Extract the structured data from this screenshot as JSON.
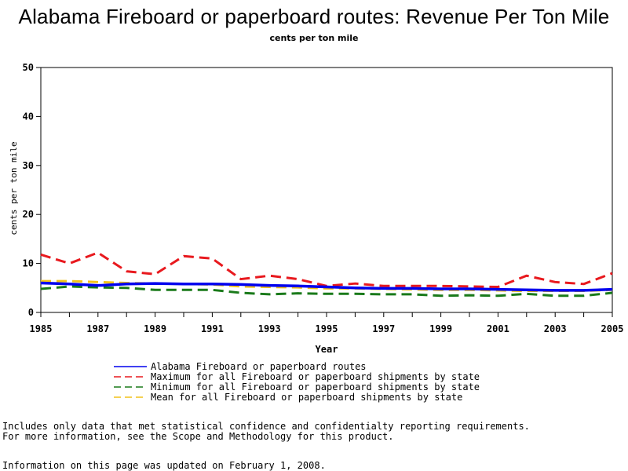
{
  "title": "Alabama Fireboard or paperboard routes: Revenue Per Ton Mile",
  "subtitle": "cents per ton mile",
  "footnotes": {
    "line1": "Includes only data that met statistical confidence and confidentialty reporting requirements.",
    "line2": "For more information, see the Scope and Methodology for this product.",
    "updated": "Information on this page was updated on February 1, 2008."
  },
  "chart_data": {
    "type": "line",
    "xlabel": "Year",
    "ylabel": "cents per ton mile",
    "xlim": [
      1985,
      2005
    ],
    "ylim": [
      0,
      50
    ],
    "xticks": [
      1985,
      1987,
      1989,
      1991,
      1993,
      1995,
      1997,
      1999,
      2001,
      2003,
      2005
    ],
    "yticks": [
      0,
      10,
      20,
      30,
      40,
      50
    ],
    "grid": false,
    "legend_position": "bottom",
    "x": [
      1985,
      1986,
      1987,
      1988,
      1989,
      1990,
      1991,
      1992,
      1993,
      1994,
      1995,
      1996,
      1997,
      1998,
      1999,
      2000,
      2001,
      2002,
      2003,
      2004,
      2005
    ],
    "series": [
      {
        "name": "Maximum for all Fireboard or paperboard shipments by state",
        "color": "#e8191e",
        "dash": true,
        "values": [
          11.8,
          10.0,
          12.2,
          8.4,
          7.8,
          11.5,
          11.0,
          6.8,
          7.5,
          6.8,
          5.4,
          5.9,
          5.4,
          5.4,
          5.4,
          5.3,
          5.2,
          7.5,
          6.2,
          5.8,
          8.0
        ]
      },
      {
        "name": "Minimum for all Fireboard or paperboard shipments by state",
        "color": "#1a7a1a",
        "dash": true,
        "values": [
          4.8,
          5.3,
          5.1,
          5.0,
          4.6,
          4.6,
          4.6,
          4.0,
          3.7,
          3.9,
          3.8,
          3.8,
          3.7,
          3.7,
          3.4,
          3.5,
          3.4,
          3.8,
          3.4,
          3.4,
          4.0
        ]
      },
      {
        "name": "Mean for all Fireboard or paperboard shipments by state",
        "color": "#f2c21a",
        "dash": true,
        "values": [
          6.4,
          6.4,
          6.2,
          6.0,
          5.9,
          5.8,
          5.7,
          5.3,
          5.2,
          5.1,
          4.9,
          4.9,
          4.8,
          4.7,
          4.6,
          4.6,
          4.5,
          4.4,
          4.4,
          4.4,
          4.6
        ]
      },
      {
        "name": "Alabama Fireboard or paperboard routes",
        "color": "#0000ee",
        "dash": false,
        "values": [
          6.0,
          5.8,
          5.5,
          5.8,
          5.9,
          5.8,
          5.8,
          5.7,
          5.5,
          5.4,
          5.2,
          5.0,
          4.9,
          4.9,
          4.8,
          4.8,
          4.7,
          4.6,
          4.5,
          4.5,
          4.7
        ]
      }
    ],
    "legend": [
      {
        "label": "Alabama Fireboard or paperboard routes",
        "color": "#0000ee",
        "dash": false
      },
      {
        "label": "Maximum for all Fireboard or paperboard shipments by state",
        "color": "#e8191e",
        "dash": true
      },
      {
        "label": "Minimum for all Fireboard or paperboard shipments by state",
        "color": "#1a7a1a",
        "dash": true
      },
      {
        "label": "Mean for all Fireboard or paperboard shipments by state",
        "color": "#f2c21a",
        "dash": true
      }
    ]
  }
}
